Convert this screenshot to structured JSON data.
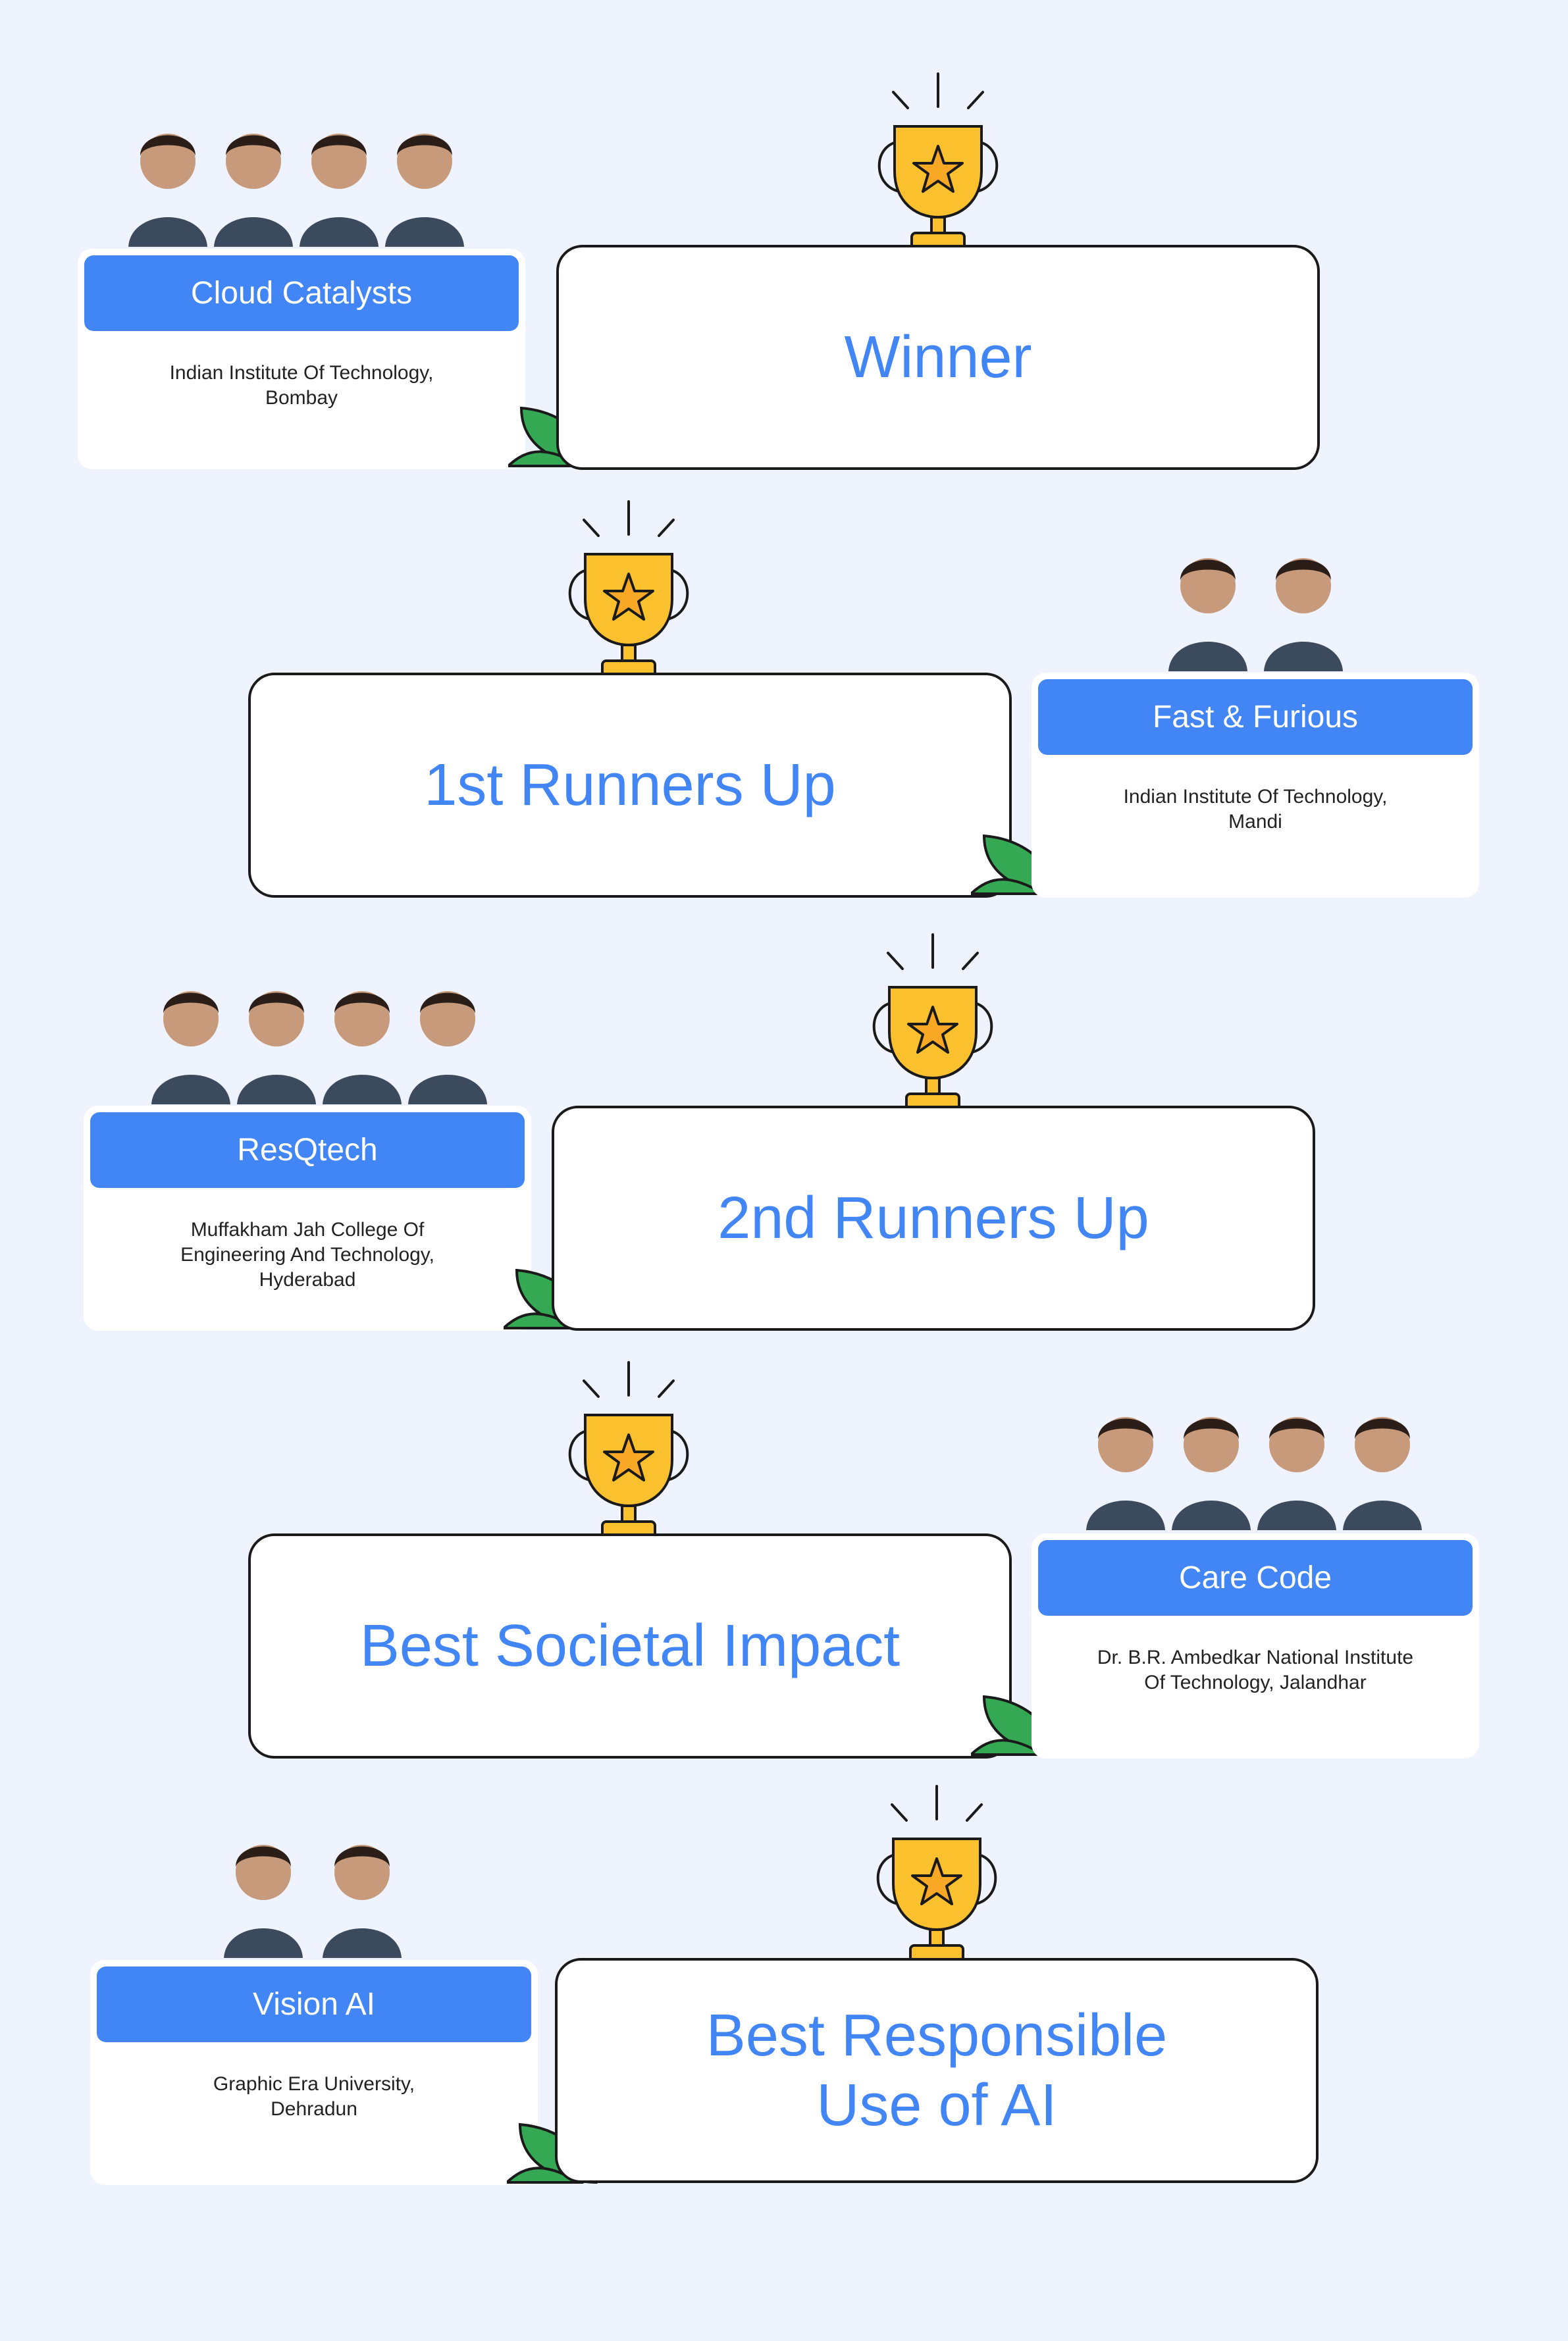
{
  "colors": {
    "background": "#eef3fd",
    "accent_blue": "#4285f4",
    "trophy_gold": "#fbc02d",
    "leaf_green": "#34a853"
  },
  "awards": [
    {
      "title": "Winner",
      "team": "Cloud Catalysts",
      "college": "Indian Institute Of Technology,\nBombay",
      "members": 4
    },
    {
      "title": "1st Runners Up",
      "team": "Fast & Furious",
      "college": "Indian Institute Of Technology,\nMandi",
      "members": 2
    },
    {
      "title": "2nd Runners Up",
      "team": "ResQtech",
      "college": "Muffakham Jah College Of\nEngineering And Technology,\nHyderabad",
      "members": 4
    },
    {
      "title": "Best Societal Impact",
      "team": "Care Code",
      "college": "Dr. B.R. Ambedkar National Institute\nOf Technology, Jalandhar",
      "members": 4
    },
    {
      "title": "Best Responsible\nUse of AI",
      "team": "Vision AI",
      "college": "Graphic Era University,\nDehradun",
      "members": 2
    }
  ],
  "icons": {
    "trophy": "trophy-icon",
    "leaf": "leaf-icon",
    "member": "team-member-photo"
  }
}
